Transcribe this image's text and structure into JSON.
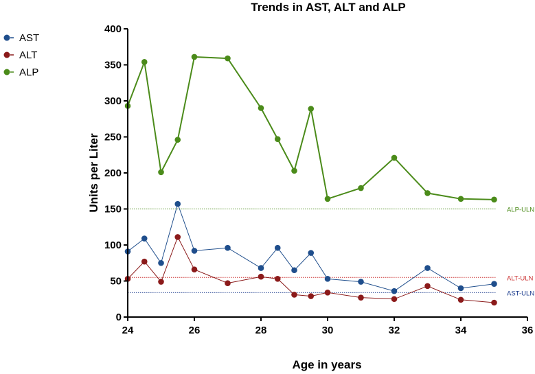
{
  "chart_data": {
    "type": "line",
    "title": "Trends in AST, ALT and ALP",
    "xlabel": "Age in years",
    "ylabel": "Units per Liter",
    "xlim": [
      24,
      36
    ],
    "ylim": [
      0,
      400
    ],
    "xticks": [
      24,
      26,
      28,
      30,
      32,
      34,
      36
    ],
    "yticks": [
      0,
      50,
      100,
      150,
      200,
      250,
      300,
      350,
      400
    ],
    "legend_position": "left",
    "series": [
      {
        "name": "AST",
        "color": "#1f4e8c",
        "x": [
          24,
          24.5,
          25,
          25.5,
          26,
          27,
          28,
          28.5,
          29,
          29.5,
          30,
          31,
          32,
          33,
          34,
          35
        ],
        "y": [
          91,
          109,
          75,
          157,
          92,
          96,
          68,
          96,
          65,
          89,
          53,
          49,
          36,
          68,
          40,
          46
        ]
      },
      {
        "name": "ALT",
        "color": "#8b1a1a",
        "x": [
          24,
          24.5,
          25,
          25.5,
          26,
          27,
          28,
          28.5,
          29,
          29.5,
          30,
          31,
          32,
          33,
          34,
          35
        ],
        "y": [
          53,
          77,
          49,
          111,
          66,
          47,
          56,
          53,
          31,
          29,
          34,
          27,
          25,
          43,
          24,
          20
        ]
      },
      {
        "name": "ALP",
        "color": "#4b8b1a",
        "x": [
          24,
          24.5,
          25,
          25.5,
          26,
          27,
          28,
          28.5,
          29,
          29.5,
          30,
          31,
          32,
          33,
          34,
          35
        ],
        "y": [
          293,
          354,
          201,
          246,
          361,
          359,
          290,
          247,
          203,
          289,
          164,
          179,
          221,
          172,
          164,
          163
        ]
      }
    ],
    "reference_lines": [
      {
        "label": "ALP-ULN",
        "value": 150,
        "color": "#4b8b1a"
      },
      {
        "label": "ALT-ULN",
        "value": 55,
        "color": "#cc3333"
      },
      {
        "label": "AST-ULN",
        "value": 34,
        "color": "#1f3f8f"
      }
    ]
  }
}
